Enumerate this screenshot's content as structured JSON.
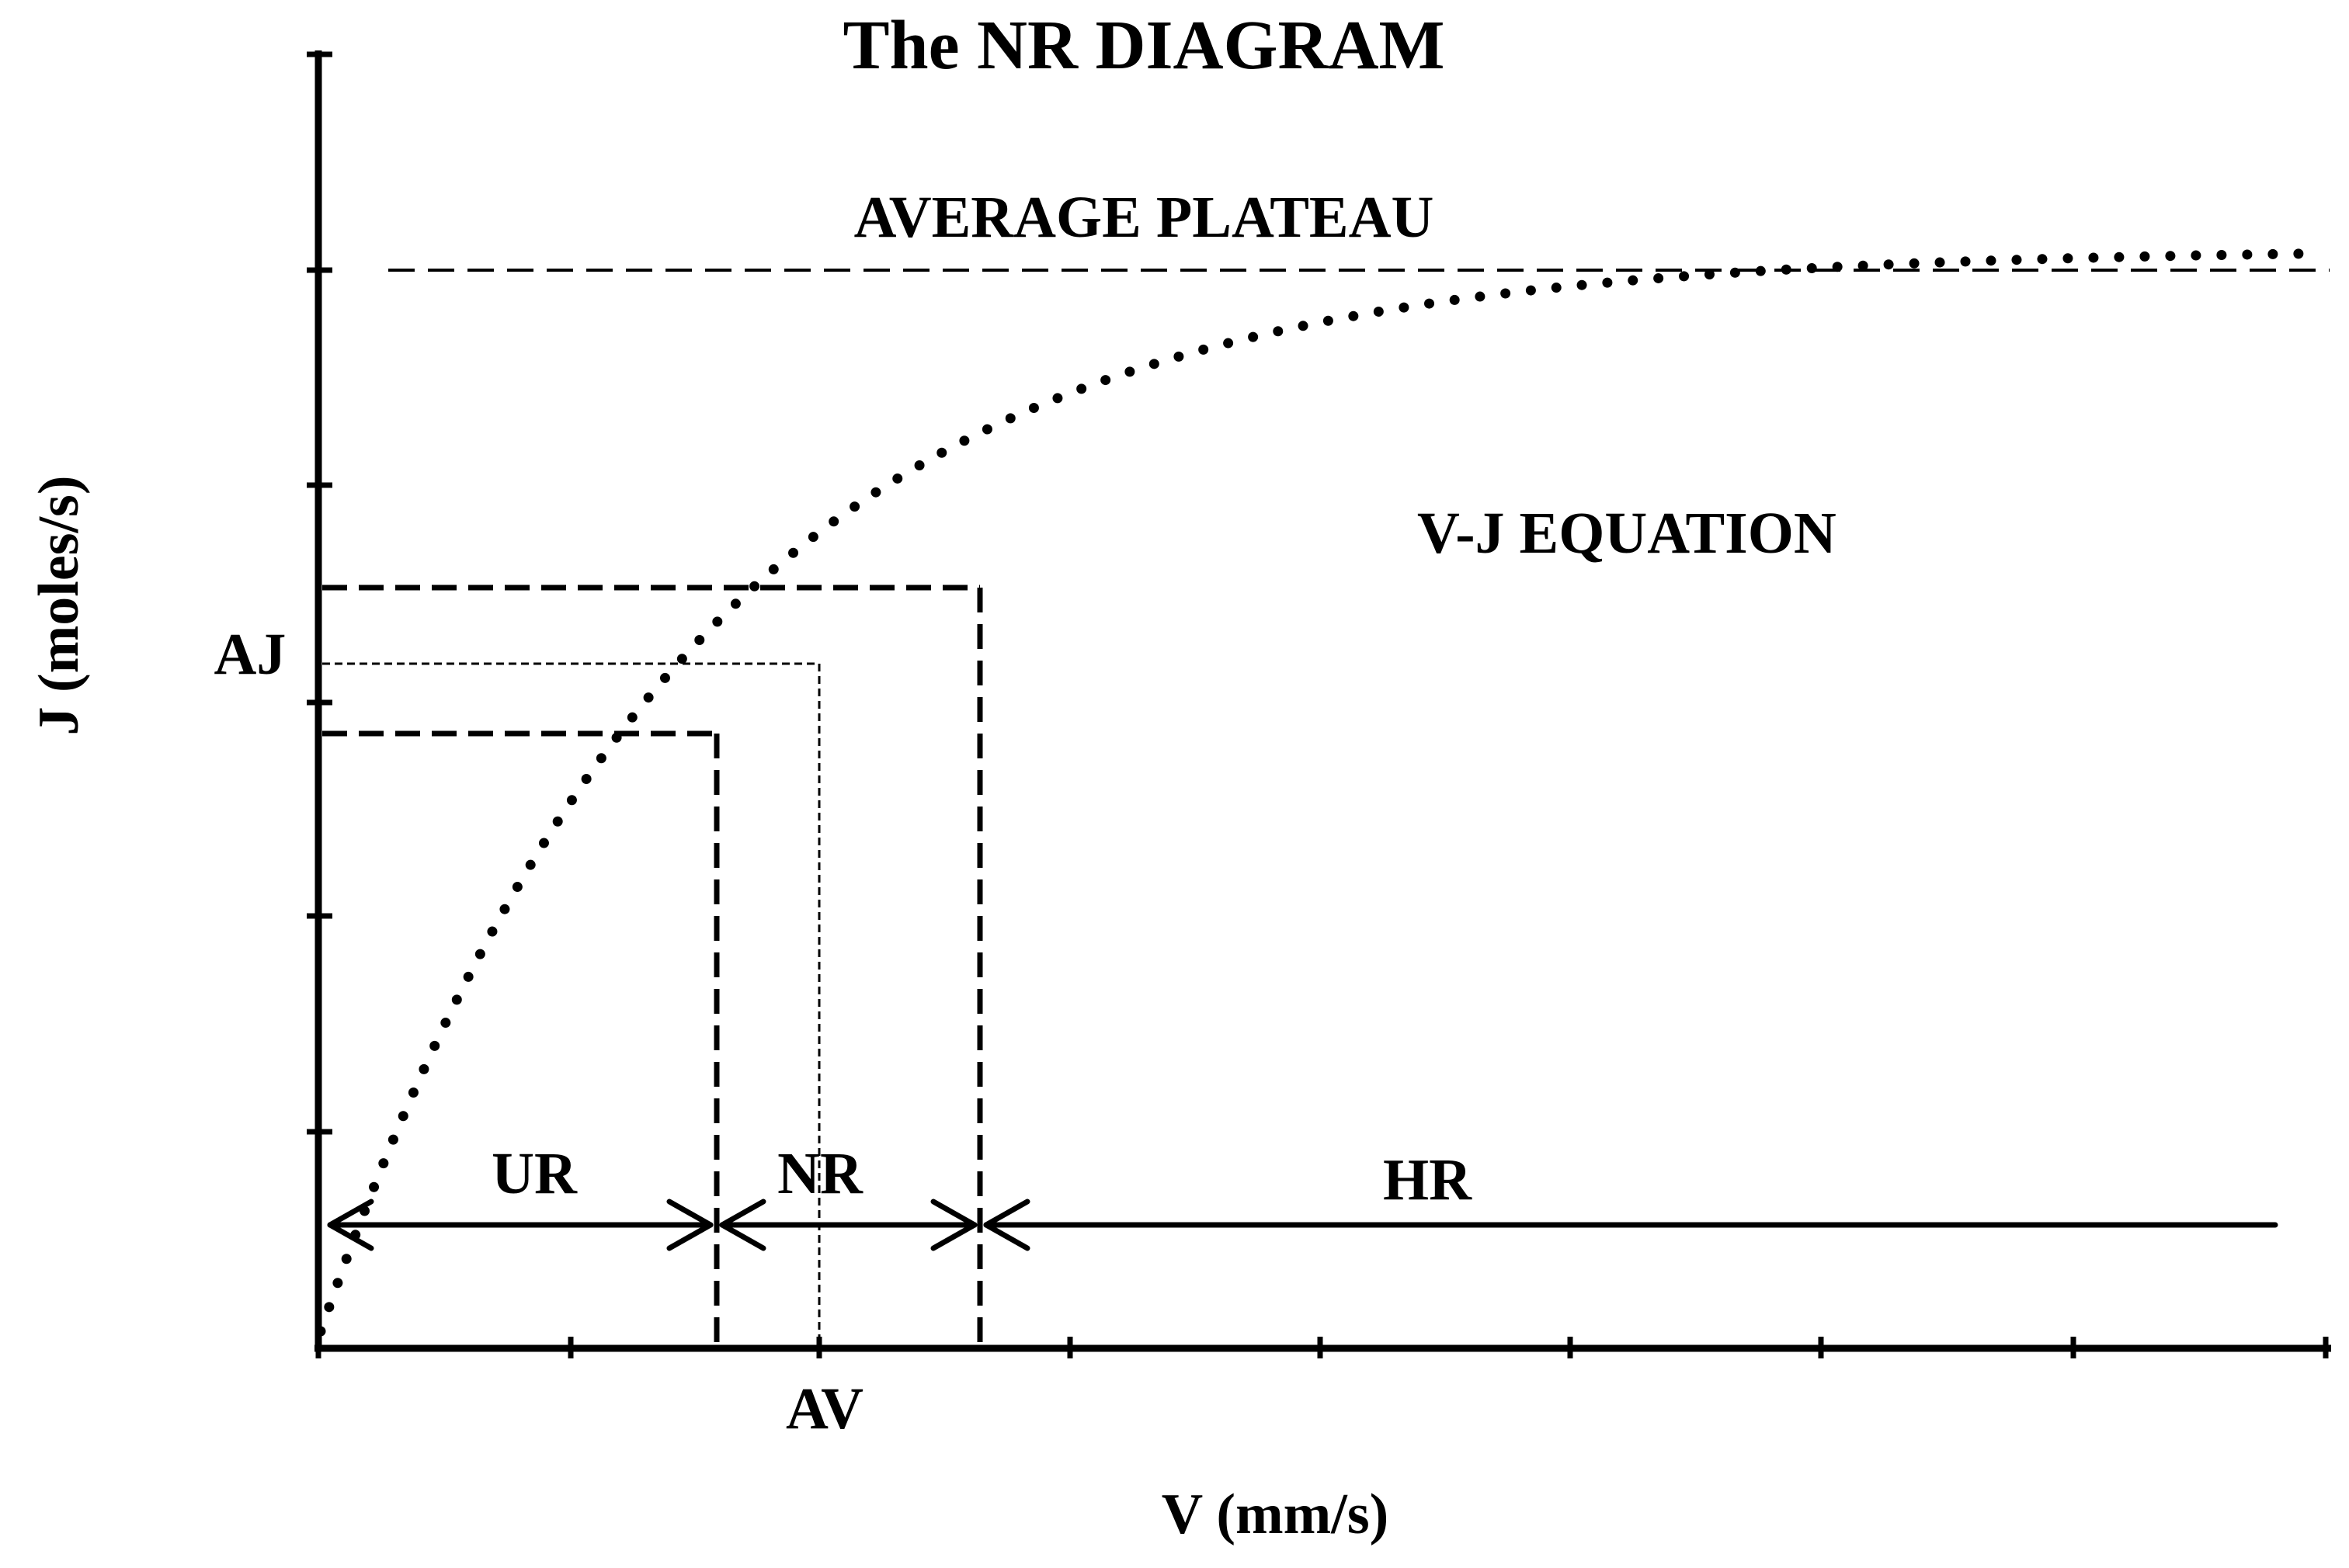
{
  "title": "The NR DIAGRAM",
  "axes": {
    "x_label": "V (mm/s)",
    "y_label": "J (moles/s)"
  },
  "labels": {
    "plateau": "AVERAGE PLATEAU",
    "curve": "V-J EQUATION",
    "aj": "AJ",
    "av": "AV"
  },
  "regions": [
    {
      "id": "ur",
      "label": "UR"
    },
    {
      "id": "nr",
      "label": "NR"
    },
    {
      "id": "hr",
      "label": "HR"
    }
  ],
  "colors": {
    "ink": "#000000",
    "background": "#ffffff"
  }
}
